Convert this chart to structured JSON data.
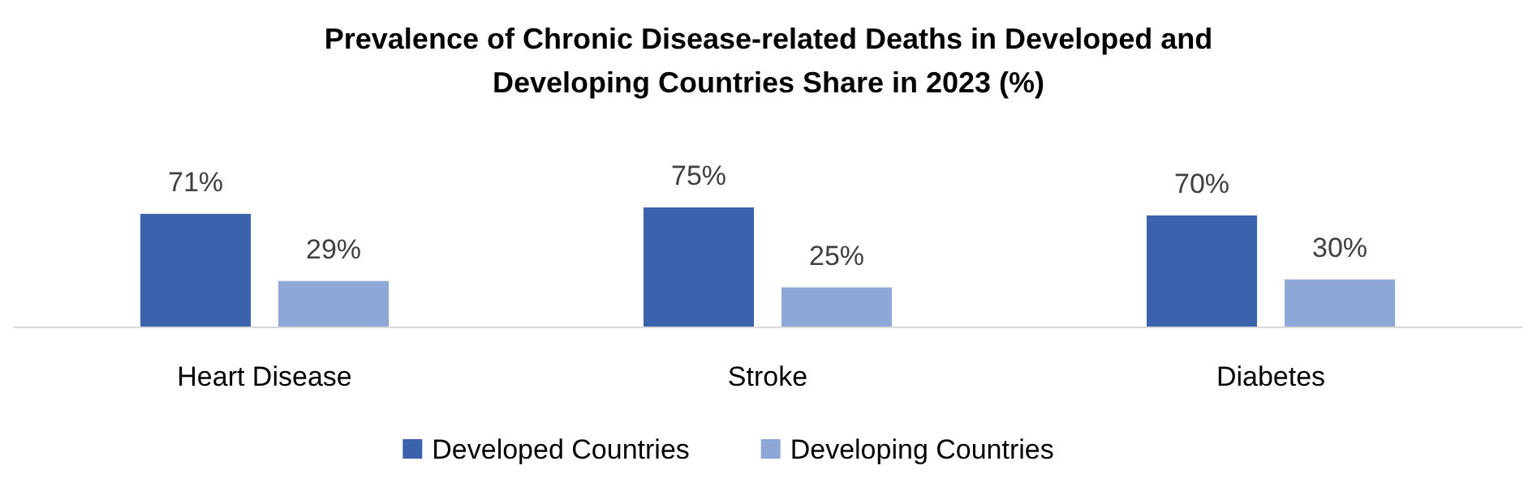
{
  "chart_data": {
    "type": "bar",
    "title": "Prevalence of Chronic Disease-related Deaths in Developed and Developing Countries Share in 2023 (%)",
    "categories": [
      "Heart Disease",
      "Stroke",
      "Diabetes"
    ],
    "legend": "bottom",
    "series": [
      {
        "name": "Developed Countries",
        "color": "#3a62ad",
        "values": [
          71,
          75,
          70
        ],
        "value_labels": [
          "71%",
          "75%",
          "70%"
        ]
      },
      {
        "name": "Developing Countries",
        "color": "#8fa7d6",
        "values": [
          29,
          25,
          30
        ],
        "value_labels": [
          "29%",
          "25%",
          "30%"
        ]
      }
    ]
  }
}
